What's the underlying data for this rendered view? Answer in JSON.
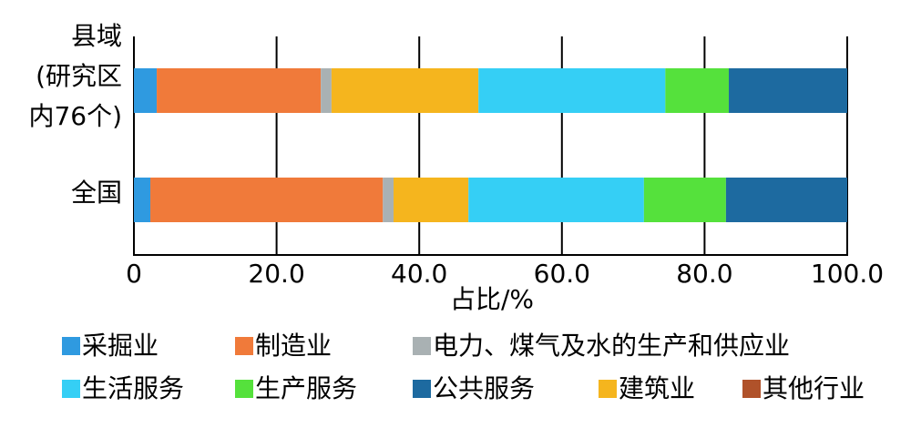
{
  "chart_data": {
    "type": "stacked_barh",
    "categories": [
      "县域\n(研究区\n内76个)",
      "全国"
    ],
    "series": [
      {
        "name": "采掘业",
        "color": "#2f9ae0",
        "values": [
          3.2,
          2.3
        ]
      },
      {
        "name": "制造业",
        "color": "#f07a3a",
        "values": [
          23.0,
          32.6
        ]
      },
      {
        "name": "电力、煤气及水的生产和供应业",
        "color": "#a9b1b3",
        "values": [
          1.5,
          1.5
        ]
      },
      {
        "name": "建筑业",
        "color": "#f5b51e",
        "values": [
          20.6,
          10.5
        ]
      },
      {
        "name": "生活服务",
        "color": "#35cff5",
        "values": [
          26.2,
          24.6
        ]
      },
      {
        "name": "生产服务",
        "color": "#55e13c",
        "values": [
          8.9,
          11.5
        ]
      },
      {
        "name": "公共服务",
        "color": "#1d6aa0",
        "values": [
          16.6,
          17.0
        ]
      },
      {
        "name": "其他行业",
        "color": "#b0522a",
        "values": [
          0,
          0
        ]
      }
    ],
    "xlabel": "占比/%",
    "xlim": [
      0,
      100
    ],
    "xticks": [
      0,
      {
        "value": 20,
        "label": "20.0"
      },
      {
        "value": 40,
        "label": "40.0"
      },
      {
        "value": 60,
        "label": "60.0"
      },
      {
        "value": 80,
        "label": "80.0"
      },
      {
        "value": 100,
        "label": "100.0"
      }
    ],
    "grid": true
  }
}
